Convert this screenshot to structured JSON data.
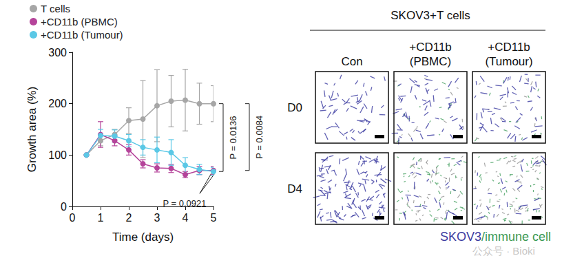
{
  "chart_data": {
    "type": "line",
    "x": [
      0.5,
      1,
      1.5,
      2,
      2.5,
      3,
      3.5,
      4,
      4.5,
      5
    ],
    "xlabel": "Time (days)",
    "ylabel": "Growth area (%)",
    "xlim": [
      0,
      5
    ],
    "xticks": [
      0,
      1,
      2,
      3,
      4,
      5
    ],
    "ylim": [
      0,
      300
    ],
    "yticks": [
      0,
      100,
      200,
      300
    ],
    "grid": false,
    "legend": "upper left",
    "marker": "circle",
    "series": [
      {
        "name": "T cells",
        "color": "#a6a6a6",
        "values": [
          100,
          128,
          140,
          167,
          170,
          196,
          205,
          207,
          200,
          200
        ],
        "errors": [
          0,
          10,
          10,
          25,
          75,
          70,
          50,
          60,
          40,
          35
        ]
      },
      {
        "name": "+CD11b (PBMC)",
        "color": "#b5449a",
        "values": [
          100,
          140,
          128,
          110,
          83,
          75,
          74,
          62,
          70,
          70
        ],
        "errors": [
          0,
          25,
          10,
          10,
          8,
          8,
          8,
          6,
          8,
          8
        ]
      },
      {
        "name": "+CD11b (Tumour)",
        "color": "#5bc8e6",
        "values": [
          100,
          138,
          137,
          128,
          115,
          110,
          105,
          80,
          72,
          68
        ],
        "errors": [
          0,
          12,
          12,
          12,
          15,
          25,
          25,
          15,
          10,
          8
        ]
      }
    ],
    "annotations": [
      {
        "text": "P = 0.0136",
        "kind": "bracket",
        "series": [
          "T cells",
          "+CD11b (Tumour)"
        ]
      },
      {
        "text": "P = 0.0084",
        "kind": "bracket",
        "series": [
          "T cells",
          "+CD11b (PBMC)"
        ]
      },
      {
        "text": "P = 0.0921",
        "kind": "callout",
        "series": [
          "+CD11b (PBMC)",
          "+CD11b (Tumour)"
        ]
      }
    ]
  },
  "panel": {
    "title": "SKOV3+T cells",
    "columns": [
      "Con",
      "+CD11b\n(PBMC)",
      "+CD11b\n(Tumour)"
    ],
    "rows": [
      "D0",
      "D4"
    ],
    "caption": [
      {
        "text": "SKOV3",
        "color": "#3b3ba0"
      },
      {
        "text": "/immune cell",
        "color": "#3a9a55"
      }
    ],
    "watermark": "公众号 · Bioki"
  }
}
